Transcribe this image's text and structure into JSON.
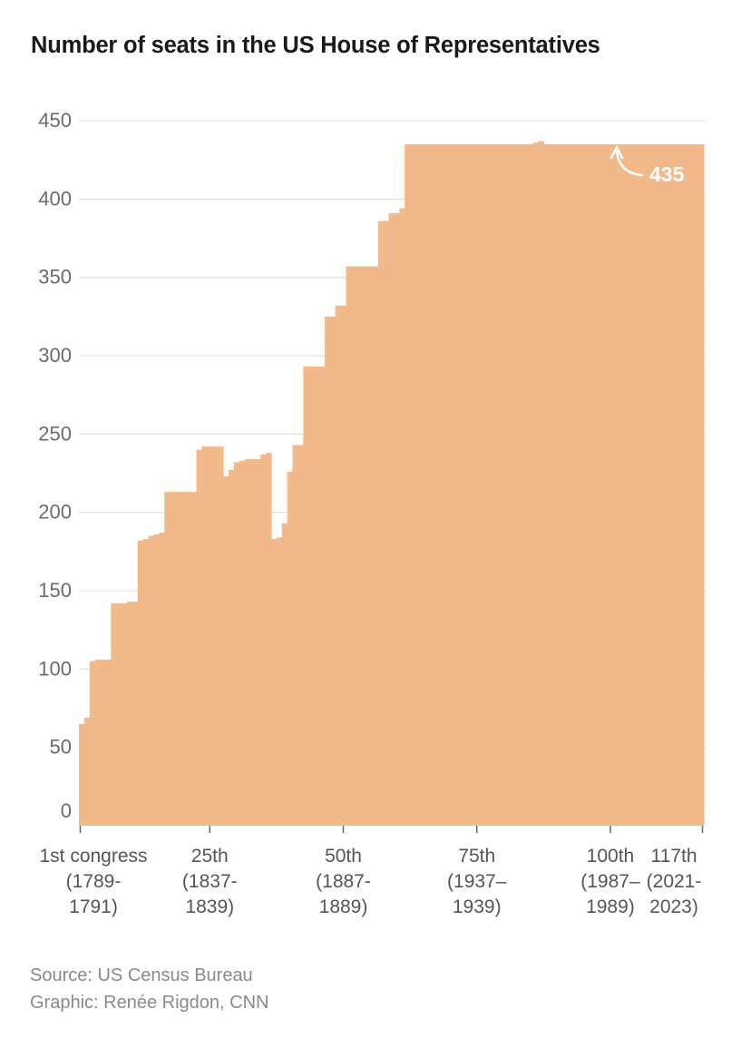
{
  "chart_data": {
    "type": "area",
    "title": "Number of seats in the US House of Representatives",
    "xlabel": "",
    "ylabel": "",
    "ylim": [
      0,
      450
    ],
    "y_ticks": [
      450,
      400,
      350,
      300,
      250,
      200,
      150,
      100,
      50,
      0
    ],
    "grid": true,
    "legend": "none",
    "step": true,
    "color": "#f2b98a",
    "x_ticks": [
      {
        "congress": 1,
        "lines": [
          "1st congress",
          "(1789-",
          "1791)"
        ]
      },
      {
        "congress": 25,
        "lines": [
          "25th",
          "(1837-",
          "1839)"
        ]
      },
      {
        "congress": 50,
        "lines": [
          "50th",
          "(1887-",
          "1889)"
        ]
      },
      {
        "congress": 75,
        "lines": [
          "75th",
          "(1937–",
          "1939)"
        ]
      },
      {
        "congress": 100,
        "lines": [
          "100th",
          "(1987–",
          "1989)"
        ]
      },
      {
        "congress": 117,
        "lines": [
          "117th",
          "(2021-",
          "2023)"
        ]
      }
    ],
    "x": [
      1,
      2,
      3,
      4,
      5,
      6,
      7,
      8,
      9,
      10,
      11,
      12,
      13,
      14,
      15,
      16,
      17,
      18,
      19,
      20,
      21,
      22,
      23,
      24,
      25,
      26,
      27,
      28,
      29,
      30,
      31,
      32,
      33,
      34,
      35,
      36,
      37,
      38,
      39,
      40,
      41,
      42,
      43,
      44,
      45,
      46,
      47,
      48,
      49,
      50,
      51,
      52,
      53,
      54,
      55,
      56,
      57,
      58,
      59,
      60,
      61,
      62,
      63,
      64,
      65,
      66,
      67,
      68,
      69,
      70,
      71,
      72,
      73,
      74,
      75,
      76,
      77,
      78,
      79,
      80,
      81,
      82,
      83,
      84,
      85,
      86,
      87,
      88,
      89,
      90,
      91,
      92,
      93,
      94,
      95,
      96,
      97,
      98,
      99,
      100,
      101,
      102,
      103,
      104,
      105,
      106,
      107,
      108,
      109,
      110,
      111,
      112,
      113,
      114,
      115,
      116,
      117
    ],
    "series": [
      {
        "values": [
          65,
          69,
          105,
          106,
          106,
          106,
          142,
          142,
          142,
          143,
          143,
          182,
          183,
          185,
          186,
          187,
          213,
          213,
          213,
          213,
          213,
          213,
          240,
          242,
          242,
          242,
          242,
          223,
          227,
          232,
          233,
          234,
          234,
          234,
          237,
          238,
          183,
          184,
          193,
          226,
          243,
          243,
          293,
          293,
          293,
          293,
          325,
          325,
          332,
          332,
          357,
          357,
          357,
          357,
          357,
          357,
          386,
          386,
          391,
          391,
          394,
          435,
          435,
          435,
          435,
          435,
          435,
          435,
          435,
          435,
          435,
          435,
          435,
          435,
          435,
          435,
          435,
          435,
          435,
          435,
          435,
          435,
          435,
          435,
          435,
          436,
          437,
          435,
          435,
          435,
          435,
          435,
          435,
          435,
          435,
          435,
          435,
          435,
          435,
          435,
          435,
          435,
          435,
          435,
          435,
          435,
          435,
          435,
          435,
          435,
          435,
          435,
          435,
          435,
          435,
          435,
          435
        ]
      }
    ],
    "annotation": {
      "congress": 117,
      "value": 435,
      "label": "435"
    }
  },
  "footer": {
    "source": "Source: US Census Bureau",
    "credit": "Graphic: Renée Rigdon, CNN"
  }
}
